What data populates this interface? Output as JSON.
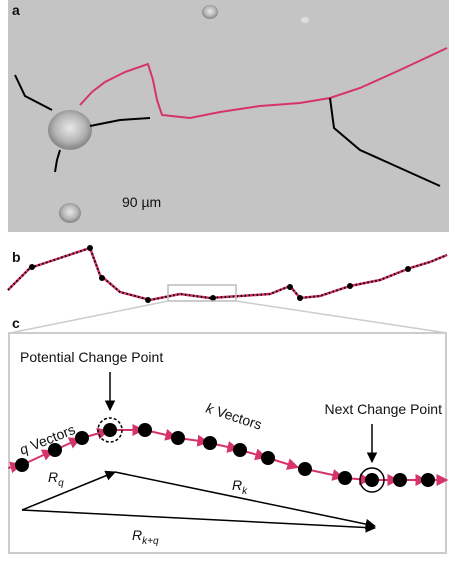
{
  "panels": {
    "a": {
      "label": "a",
      "scale": "90 µm"
    },
    "b": {
      "label": "b"
    },
    "c": {
      "label": "c",
      "potential_change_point": "Potential Change Point",
      "next_change_point": "Next Change Point",
      "q_vectors": {
        "symbol": "q",
        "text": "Vectors"
      },
      "k_vectors": {
        "symbol": "k",
        "text": "Vectors"
      },
      "r_q": {
        "symbol": "R",
        "subscript": "q"
      },
      "r_k": {
        "symbol": "R",
        "subscript": "k"
      },
      "r_kq": {
        "symbol": "R",
        "subscript": "k+q"
      }
    }
  }
}
